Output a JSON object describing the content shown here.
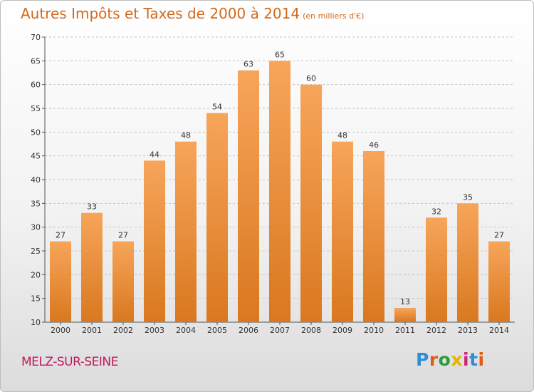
{
  "title": "Autres Impôts et Taxes de 2000 à 2014",
  "unit": "(en milliers d'€)",
  "commune": "MELZ-SUR-SEINE",
  "logo": {
    "text": "Proxiti",
    "letter_colors": [
      "#2f8fd6",
      "#e05a1c",
      "#2a9d3a",
      "#e6b400",
      "#d0267a",
      "#2f8fd6",
      "#e05a1c"
    ]
  },
  "colors": {
    "bar_light": "#f7a55a",
    "bar_dark": "#d9781f",
    "title": "#d4691c",
    "commune": "#c2185b"
  },
  "chart_data": {
    "type": "bar",
    "categories": [
      "2000",
      "2001",
      "2002",
      "2003",
      "2004",
      "2005",
      "2006",
      "2007",
      "2008",
      "2009",
      "2010",
      "2011",
      "2012",
      "2013",
      "2014"
    ],
    "values": [
      27,
      33,
      27,
      44,
      48,
      54,
      63,
      65,
      60,
      48,
      46,
      13,
      32,
      35,
      27
    ],
    "y_ticks": [
      10,
      15,
      20,
      25,
      30,
      35,
      40,
      45,
      50,
      55,
      60,
      65,
      70
    ],
    "ylim": [
      10,
      70
    ],
    "grid": "horizontal dashed",
    "legend": "none"
  }
}
